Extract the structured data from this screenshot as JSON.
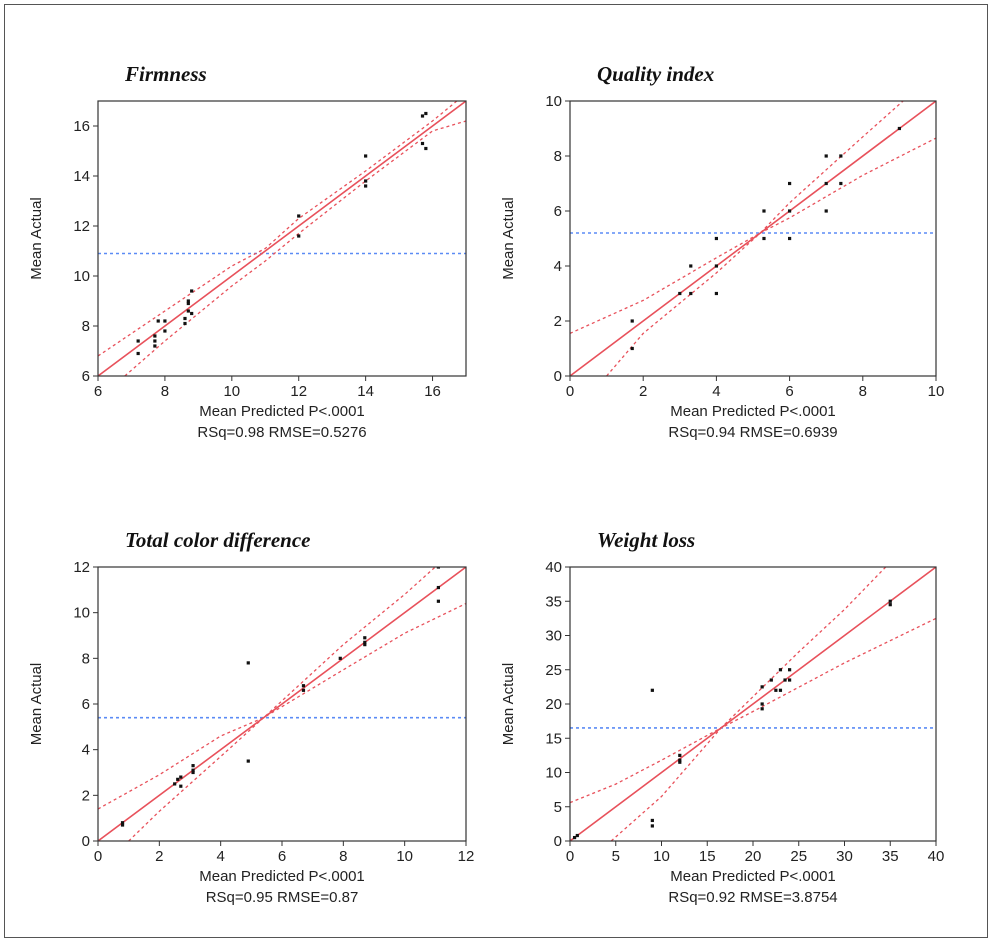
{
  "colors": {
    "fit": "#e8515b",
    "ci": "#e8515b",
    "mean": "#5b8bf5",
    "point": "#111111",
    "frame": "#333333"
  },
  "chart_data": [
    {
      "type": "scatter",
      "title": "Firmness",
      "xlabel": "Mean Predicted P<.0001",
      "ylabel": "Mean Actual",
      "stat": "RSq=0.98 RMSE=0.5276",
      "xlim": [
        6,
        17
      ],
      "ylim": [
        6,
        17
      ],
      "xticks": [
        6,
        8,
        10,
        12,
        14,
        16
      ],
      "yticks": [
        6,
        8,
        10,
        12,
        14,
        16
      ],
      "mean_line": 10.9,
      "fit_line": [
        [
          6,
          6
        ],
        [
          17,
          17
        ]
      ],
      "ci_upper": [
        [
          6,
          6.8
        ],
        [
          8,
          8.6
        ],
        [
          10,
          10.4
        ],
        [
          11,
          11.1
        ],
        [
          12,
          12.3
        ],
        [
          14,
          14.2
        ],
        [
          16,
          16.2
        ],
        [
          17,
          17.3
        ]
      ],
      "ci_lower": [
        [
          6.8,
          6
        ],
        [
          8,
          7.4
        ],
        [
          10,
          9.6
        ],
        [
          11,
          10.6
        ],
        [
          12,
          11.7
        ],
        [
          14,
          13.8
        ],
        [
          16,
          15.8
        ],
        [
          17,
          16.2
        ]
      ],
      "points": [
        [
          7.2,
          7.4
        ],
        [
          7.2,
          6.9
        ],
        [
          7.7,
          7.4
        ],
        [
          7.7,
          7.2
        ],
        [
          7.8,
          8.2
        ],
        [
          7.7,
          7.6
        ],
        [
          8.0,
          7.8
        ],
        [
          8.0,
          8.2
        ],
        [
          8.7,
          9.0
        ],
        [
          8.7,
          8.9
        ],
        [
          8.6,
          8.3
        ],
        [
          8.6,
          8.1
        ],
        [
          8.8,
          8.5
        ],
        [
          8.8,
          9.4
        ],
        [
          8.7,
          8.6
        ],
        [
          12.0,
          12.4
        ],
        [
          12.0,
          11.6
        ],
        [
          14.0,
          14.8
        ],
        [
          14.0,
          13.8
        ],
        [
          14.0,
          13.6
        ],
        [
          15.7,
          16.4
        ],
        [
          15.8,
          16.5
        ],
        [
          15.7,
          15.3
        ],
        [
          15.8,
          15.1
        ]
      ]
    },
    {
      "type": "scatter",
      "title": "Quality index",
      "xlabel": "Mean Predicted P<.0001",
      "ylabel": "Mean Actual",
      "stat": "RSq=0.94 RMSE=0.6939",
      "xlim": [
        0,
        10
      ],
      "ylim": [
        0,
        10
      ],
      "xticks": [
        0,
        2,
        4,
        6,
        8,
        10
      ],
      "yticks": [
        0,
        2,
        4,
        6,
        8,
        10
      ],
      "mean_line": 5.2,
      "fit_line": [
        [
          0,
          0
        ],
        [
          10,
          10
        ]
      ],
      "ci_upper": [
        [
          0,
          1.55
        ],
        [
          2,
          2.75
        ],
        [
          4,
          4.3
        ],
        [
          5.2,
          5.2
        ],
        [
          6,
          6.3
        ],
        [
          8,
          8.7
        ],
        [
          9.1,
          10
        ]
      ],
      "ci_lower": [
        [
          1.0,
          0
        ],
        [
          2,
          1.55
        ],
        [
          4,
          3.75
        ],
        [
          5.2,
          5.2
        ],
        [
          6,
          5.75
        ],
        [
          8,
          7.3
        ],
        [
          10,
          8.65
        ]
      ],
      "points": [
        [
          1.7,
          2.0
        ],
        [
          1.7,
          1.0
        ],
        [
          3.0,
          3.0
        ],
        [
          3.3,
          3.0
        ],
        [
          3.3,
          4.0
        ],
        [
          4.0,
          5.0
        ],
        [
          4.0,
          4.0
        ],
        [
          4.0,
          3.0
        ],
        [
          5.3,
          6.0
        ],
        [
          5.3,
          5.0
        ],
        [
          6.0,
          7.0
        ],
        [
          6.0,
          6.0
        ],
        [
          6.0,
          5.0
        ],
        [
          7.0,
          8.0
        ],
        [
          7.0,
          7.0
        ],
        [
          7.0,
          6.0
        ],
        [
          7.4,
          8.0
        ],
        [
          7.4,
          7.0
        ],
        [
          9.0,
          9.0
        ]
      ]
    },
    {
      "type": "scatter",
      "title": "Total color difference",
      "xlabel": "Mean Predicted P<.0001",
      "ylabel": "Mean Actual",
      "stat": "RSq=0.95 RMSE=0.87",
      "xlim": [
        0,
        12
      ],
      "ylim": [
        0,
        12
      ],
      "xticks": [
        0,
        2,
        4,
        6,
        8,
        10,
        12
      ],
      "yticks": [
        0,
        2,
        4,
        6,
        8,
        10,
        12
      ],
      "mean_line": 5.4,
      "fit_line": [
        [
          0,
          0
        ],
        [
          12,
          12
        ]
      ],
      "ci_upper": [
        [
          0,
          1.4
        ],
        [
          2,
          2.9
        ],
        [
          4,
          4.6
        ],
        [
          5.4,
          5.4
        ],
        [
          8,
          8.6
        ],
        [
          10,
          10.8
        ],
        [
          11,
          12
        ]
      ],
      "ci_lower": [
        [
          1.0,
          0
        ],
        [
          2,
          1.3
        ],
        [
          4,
          3.7
        ],
        [
          5.4,
          5.4
        ],
        [
          8,
          7.5
        ],
        [
          10,
          9.1
        ],
        [
          12,
          10.4
        ]
      ],
      "points": [
        [
          0.8,
          0.8
        ],
        [
          0.8,
          0.7
        ],
        [
          2.5,
          2.5
        ],
        [
          2.6,
          2.7
        ],
        [
          2.7,
          2.4
        ],
        [
          2.7,
          2.8
        ],
        [
          3.1,
          3.1
        ],
        [
          3.1,
          3.3
        ],
        [
          3.1,
          3.0
        ],
        [
          4.9,
          7.8
        ],
        [
          4.9,
          3.5
        ],
        [
          6.7,
          6.8
        ],
        [
          6.7,
          6.6
        ],
        [
          7.9,
          8.0
        ],
        [
          8.7,
          8.9
        ],
        [
          8.7,
          8.6
        ],
        [
          8.7,
          8.7
        ],
        [
          11.1,
          12.0
        ],
        [
          11.1,
          11.1
        ],
        [
          11.1,
          10.5
        ]
      ]
    },
    {
      "type": "scatter",
      "title": "Weight loss",
      "xlabel": "Mean Predicted P<.0001",
      "ylabel": "Mean Actual",
      "stat": "RSq=0.92 RMSE=3.8754",
      "xlim": [
        0,
        40
      ],
      "ylim": [
        0,
        40
      ],
      "xticks": [
        0,
        5,
        10,
        15,
        20,
        25,
        30,
        35,
        40
      ],
      "yticks": [
        0,
        5,
        10,
        15,
        20,
        25,
        30,
        35,
        40
      ],
      "mean_line": 16.5,
      "fit_line": [
        [
          0,
          0
        ],
        [
          40,
          40
        ]
      ],
      "ci_upper": [
        [
          0,
          5.6
        ],
        [
          5,
          8.3
        ],
        [
          10,
          11.8
        ],
        [
          16.5,
          16.5
        ],
        [
          25,
          27.6
        ],
        [
          30,
          33.8
        ],
        [
          34.5,
          40
        ]
      ],
      "ci_lower": [
        [
          4.5,
          0
        ],
        [
          10,
          6.5
        ],
        [
          16.5,
          16.5
        ],
        [
          20,
          18.9
        ],
        [
          30,
          26.0
        ],
        [
          40,
          32.5
        ]
      ],
      "points": [
        [
          0.5,
          0.5
        ],
        [
          0.8,
          0.8
        ],
        [
          9.0,
          22.0
        ],
        [
          9.0,
          3.0
        ],
        [
          9.0,
          2.2
        ],
        [
          12.0,
          12.5
        ],
        [
          12.0,
          11.5
        ],
        [
          12.0,
          11.8
        ],
        [
          21.0,
          22.5
        ],
        [
          21.0,
          20.0
        ],
        [
          21.0,
          19.3
        ],
        [
          22.0,
          23.5
        ],
        [
          22.5,
          22.0
        ],
        [
          23.0,
          25.0
        ],
        [
          23.0,
          22.0
        ],
        [
          23.5,
          23.5
        ],
        [
          24.0,
          25.0
        ],
        [
          24.0,
          23.5
        ],
        [
          35.0,
          35.0
        ],
        [
          35.0,
          34.5
        ]
      ]
    }
  ]
}
